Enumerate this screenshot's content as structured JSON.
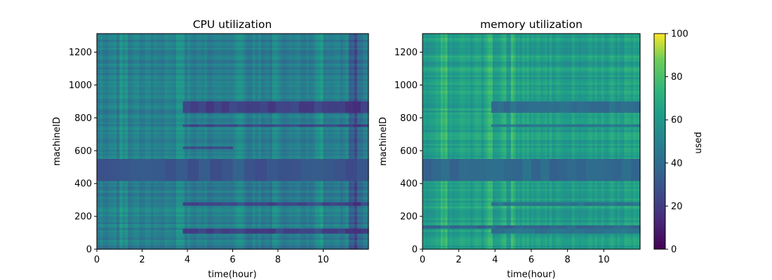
{
  "chart_data": [
    {
      "type": "heatmap",
      "title": "CPU utilization",
      "xlabel": "time(hour)",
      "ylabel": "machineID",
      "xlim": [
        0,
        12
      ],
      "ylim": [
        0,
        1313
      ],
      "xticks": [
        0,
        2,
        4,
        6,
        8,
        10
      ],
      "yticks": [
        0,
        200,
        400,
        600,
        800,
        1000,
        1200
      ],
      "colormap": "viridis",
      "value_range": [
        0,
        100
      ],
      "base_level": 42,
      "row_bands": [
        {
          "from": 415,
          "to": 550,
          "value": 26,
          "from_hour": 0,
          "to_hour": 12
        },
        {
          "from": 830,
          "to": 900,
          "value": 20,
          "from_hour": 3.8,
          "to_hour": 12
        },
        {
          "from": 95,
          "to": 125,
          "value": 20,
          "from_hour": 3.8,
          "to_hour": 12
        },
        {
          "from": 265,
          "to": 285,
          "value": 22,
          "from_hour": 3.8,
          "to_hour": 12
        },
        {
          "from": 745,
          "to": 760,
          "value": 22,
          "from_hour": 3.8,
          "to_hour": 12
        },
        {
          "from": 610,
          "to": 625,
          "value": 22,
          "from_hour": 3.8,
          "to_hour": 6
        }
      ],
      "bright_columns_hours": [
        1.2,
        3.7,
        6.3,
        7.9,
        9.8
      ],
      "dark_columns_hours": [
        11.3,
        11.6
      ]
    },
    {
      "type": "heatmap",
      "title": "memory utilization",
      "xlabel": "time(hour)",
      "ylabel": "machineID",
      "xlim": [
        0,
        12
      ],
      "ylim": [
        0,
        1313
      ],
      "xticks": [
        0,
        2,
        4,
        6,
        8,
        10
      ],
      "yticks": [
        0,
        200,
        400,
        600,
        800,
        1000,
        1200
      ],
      "colormap": "viridis",
      "value_range": [
        0,
        100
      ],
      "base_level": 56,
      "row_bands": [
        {
          "from": 415,
          "to": 550,
          "value": 34,
          "from_hour": 0,
          "to_hour": 12
        },
        {
          "from": 830,
          "to": 900,
          "value": 36,
          "from_hour": 3.8,
          "to_hour": 12
        },
        {
          "from": 95,
          "to": 125,
          "value": 38,
          "from_hour": 3.8,
          "to_hour": 12
        },
        {
          "from": 125,
          "to": 145,
          "value": 32,
          "from_hour": 0,
          "to_hour": 12
        },
        {
          "from": 265,
          "to": 285,
          "value": 38,
          "from_hour": 3.8,
          "to_hour": 12
        },
        {
          "from": 745,
          "to": 760,
          "value": 38,
          "from_hour": 3.8,
          "to_hour": 12
        }
      ],
      "bright_columns_hours": [
        1.2,
        3.7,
        4.5,
        5.0
      ],
      "dark_columns_hours": []
    }
  ],
  "colorbar": {
    "label": "used",
    "ticks": [
      0,
      20,
      40,
      60,
      80,
      100
    ],
    "range": [
      0,
      100
    ],
    "colormap": "viridis"
  }
}
